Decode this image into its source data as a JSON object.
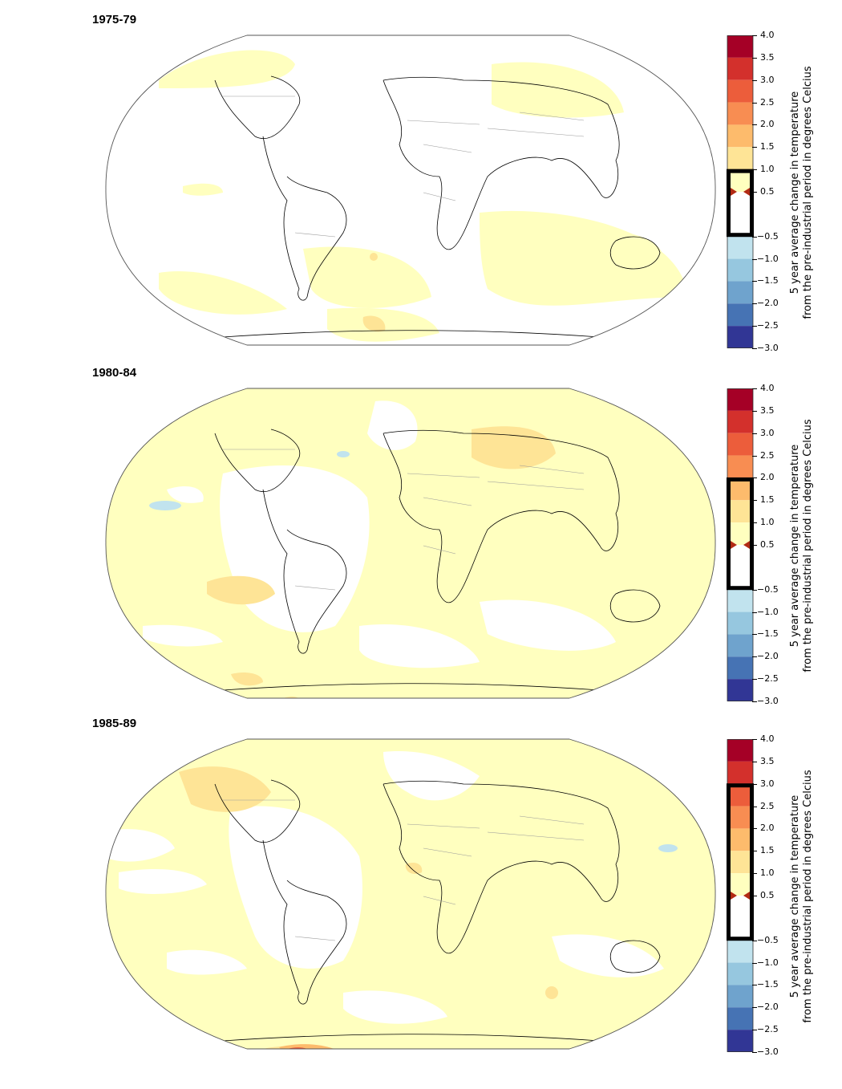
{
  "colorbar": {
    "caption_line1": "5 year average change in temperature",
    "caption_line2": "from the pre-industrial period in degrees Celcius",
    "ticks": [
      "4.0",
      "3.5",
      "3.0",
      "2.5",
      "2.0",
      "1.5",
      "1.0",
      "0.5",
      "−0.5",
      "−1.0",
      "−1.5",
      "−2.0",
      "−2.5",
      "−3.0"
    ],
    "tick_values": [
      4.0,
      3.5,
      3.0,
      2.5,
      2.0,
      1.5,
      1.0,
      0.5,
      -0.5,
      -1.0,
      -1.5,
      -2.0,
      -2.5,
      -3.0
    ],
    "bands": [
      {
        "from": 3.5,
        "to": 4.0,
        "color": "#a50026"
      },
      {
        "from": 3.0,
        "to": 3.5,
        "color": "#d3302c"
      },
      {
        "from": 2.5,
        "to": 3.0,
        "color": "#ec5d3b"
      },
      {
        "from": 2.0,
        "to": 2.5,
        "color": "#f88d52"
      },
      {
        "from": 1.5,
        "to": 2.0,
        "color": "#fdbb6c"
      },
      {
        "from": 1.0,
        "to": 1.5,
        "color": "#fee496"
      },
      {
        "from": 0.5,
        "to": 1.0,
        "color": "#ffffbf"
      },
      {
        "from": -0.5,
        "to": 0.5,
        "color": "#ffffff"
      },
      {
        "from": -1.0,
        "to": -0.5,
        "color": "#c1e3ee"
      },
      {
        "from": -1.5,
        "to": -1.0,
        "color": "#96c7df"
      },
      {
        "from": -2.0,
        "to": -1.5,
        "color": "#6fa3cd"
      },
      {
        "from": -2.5,
        "to": -2.0,
        "color": "#4673b4"
      },
      {
        "from": -3.0,
        "to": -2.5,
        "color": "#313695"
      }
    ]
  },
  "panels": [
    {
      "title": "1975-79",
      "range": [
        -0.5,
        1.0
      ]
    },
    {
      "title": "1980-84",
      "range": [
        -0.5,
        2.0
      ]
    },
    {
      "title": "1985-89",
      "range": [
        -0.5,
        3.0
      ]
    }
  ],
  "colors": {
    "anomaly_light": "#ffffbf",
    "anomaly_mid": "#fee496",
    "anomaly_warm": "#fdbb6c",
    "anomaly_hot": "#ec5d3b",
    "anomaly_cold": "#c1e3ee",
    "coast": "#000000",
    "border": "#9a9a9a",
    "outline": "#555555"
  }
}
